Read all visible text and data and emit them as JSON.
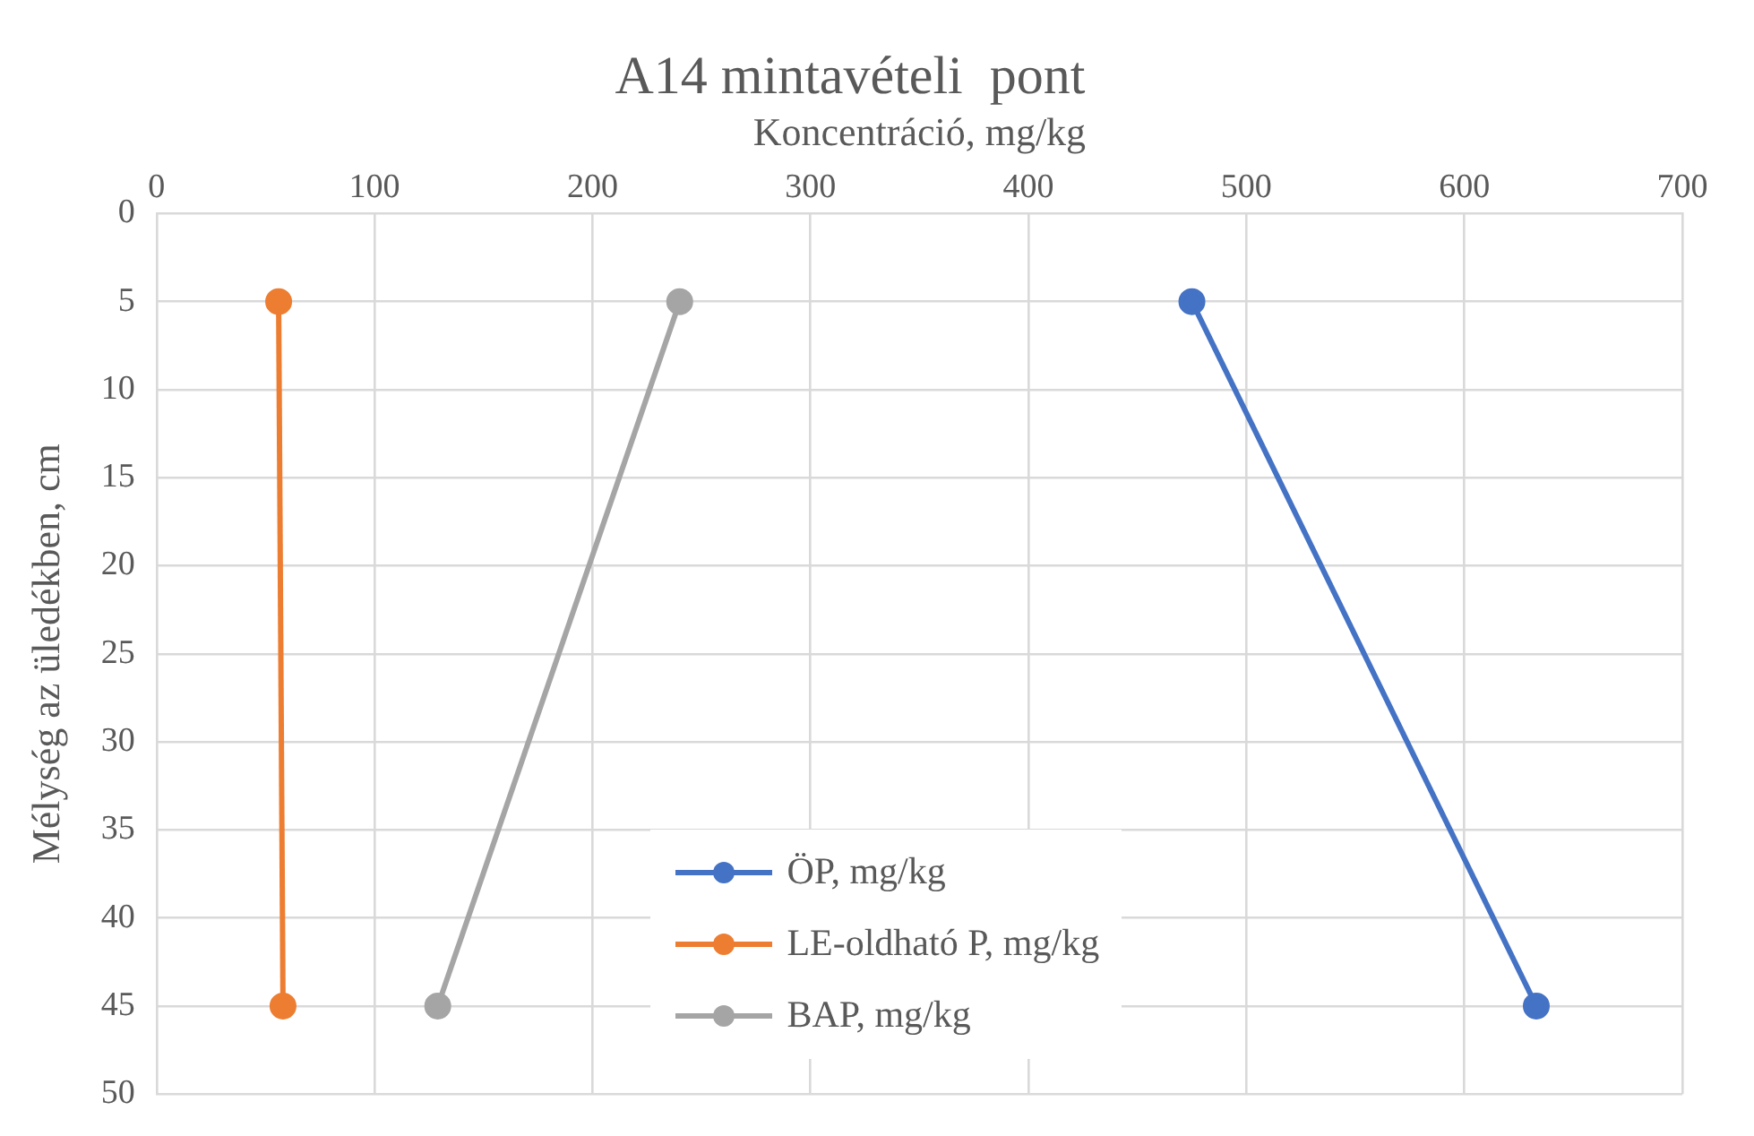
{
  "chart_data": {
    "type": "line",
    "title": "A14 mintavételi  pont",
    "xlabel": "Koncentráció, mg/kg",
    "ylabel": "Mélység az üledékben, cm",
    "xlim": [
      0,
      700
    ],
    "xticks": [
      0,
      100,
      200,
      300,
      400,
      500,
      600,
      700
    ],
    "ylim": [
      50,
      0
    ],
    "yticks": [
      0,
      5,
      10,
      15,
      20,
      25,
      30,
      35,
      40,
      45,
      50
    ],
    "grid": true,
    "legend": "bottom",
    "marker": "circle",
    "line_style": "solid",
    "series": [
      {
        "name": "ÖP, mg/kg",
        "color": "#4472c4",
        "x": [
          475,
          633
        ],
        "values": [
          5,
          45
        ]
      },
      {
        "name": "LE-oldható P, mg/kg",
        "color": "#ed7d31",
        "x": [
          56,
          58
        ],
        "values": [
          5,
          45
        ]
      },
      {
        "name": "BAP, mg/kg",
        "color": "#a5a5a5",
        "x": [
          240,
          129
        ],
        "values": [
          5,
          45
        ]
      }
    ]
  }
}
